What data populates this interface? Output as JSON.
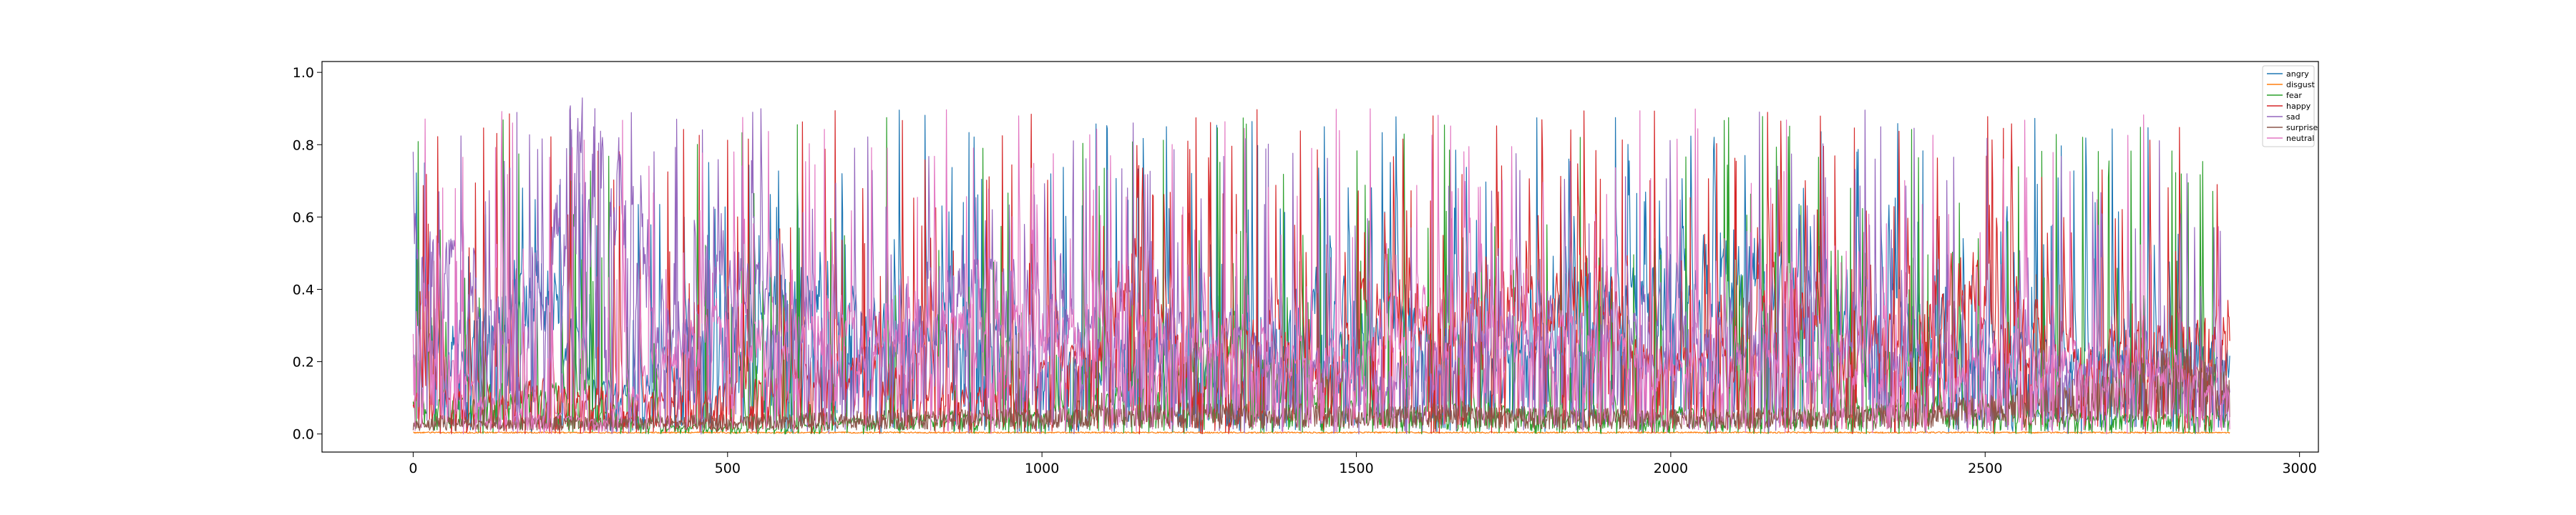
{
  "chart_data": {
    "type": "line",
    "title": "",
    "xlabel": "",
    "ylabel": "",
    "xlim": [
      -145,
      3030
    ],
    "ylim": [
      -0.05,
      1.03
    ],
    "x_ticks": [
      0,
      500,
      1000,
      1500,
      2000,
      2500,
      3000
    ],
    "y_ticks": [
      0.0,
      0.2,
      0.4,
      0.6,
      0.8,
      1.0
    ],
    "x_tick_labels": [
      "0",
      "500",
      "1000",
      "1500",
      "2000",
      "2500",
      "3000"
    ],
    "y_tick_labels": [
      "0.0",
      "0.2",
      "0.4",
      "0.6",
      "0.8",
      "1.0"
    ],
    "n_points": 2890,
    "grid": false,
    "legend_position": "top-right",
    "series": [
      {
        "name": "angry",
        "color": "#1f77b4",
        "profile": [
          [
            0,
            0.2
          ],
          [
            100,
            0.3
          ],
          [
            200,
            0.45
          ],
          [
            280,
            0.15
          ],
          [
            350,
            0.1
          ],
          [
            420,
            0.2
          ],
          [
            520,
            0.3
          ],
          [
            620,
            0.4
          ],
          [
            700,
            0.3
          ],
          [
            760,
            0.25
          ],
          [
            900,
            0.3
          ],
          [
            1000,
            0.2
          ],
          [
            1100,
            0.2
          ],
          [
            1200,
            0.25
          ],
          [
            1300,
            0.1
          ],
          [
            1420,
            0.35
          ],
          [
            1500,
            0.38
          ],
          [
            1600,
            0.3
          ],
          [
            1700,
            0.2
          ],
          [
            1800,
            0.3
          ],
          [
            1900,
            0.35
          ],
          [
            2000,
            0.4
          ],
          [
            2100,
            0.45
          ],
          [
            2200,
            0.4
          ],
          [
            2300,
            0.35
          ],
          [
            2400,
            0.3
          ],
          [
            2500,
            0.25
          ],
          [
            2600,
            0.2
          ],
          [
            2700,
            0.2
          ],
          [
            2800,
            0.25
          ],
          [
            2890,
            0.2
          ]
        ]
      },
      {
        "name": "disgust",
        "color": "#ff7f0e",
        "profile": [
          [
            0,
            0.003
          ],
          [
            2890,
            0.003
          ]
        ]
      },
      {
        "name": "fear",
        "color": "#2ca02c",
        "profile": [
          [
            0,
            0.08
          ],
          [
            200,
            0.12
          ],
          [
            400,
            0.02
          ],
          [
            600,
            0.02
          ],
          [
            800,
            0.05
          ],
          [
            1000,
            0.05
          ],
          [
            1200,
            0.15
          ],
          [
            1300,
            0.25
          ],
          [
            1400,
            0.1
          ],
          [
            1600,
            0.06
          ],
          [
            1800,
            0.06
          ],
          [
            2000,
            0.06
          ],
          [
            2200,
            0.05
          ],
          [
            2400,
            0.08
          ],
          [
            2600,
            0.05
          ],
          [
            2890,
            0.05
          ]
        ]
      },
      {
        "name": "happy",
        "color": "#d62728",
        "profile": [
          [
            0,
            0.1
          ],
          [
            200,
            0.12
          ],
          [
            400,
            0.1
          ],
          [
            600,
            0.15
          ],
          [
            700,
            0.2
          ],
          [
            900,
            0.1
          ],
          [
            1100,
            0.25
          ],
          [
            1160,
            0.6
          ],
          [
            1200,
            0.3
          ],
          [
            1300,
            0.1
          ],
          [
            1350,
            0.3
          ],
          [
            1450,
            0.15
          ],
          [
            1550,
            0.4
          ],
          [
            1650,
            0.25
          ],
          [
            1700,
            0.45
          ],
          [
            1800,
            0.3
          ],
          [
            1880,
            0.45
          ],
          [
            1950,
            0.2
          ],
          [
            2100,
            0.2
          ],
          [
            2170,
            0.45
          ],
          [
            2250,
            0.2
          ],
          [
            2350,
            0.3
          ],
          [
            2450,
            0.4
          ],
          [
            2550,
            0.35
          ],
          [
            2650,
            0.2
          ],
          [
            2750,
            0.25
          ],
          [
            2890,
            0.3
          ]
        ]
      },
      {
        "name": "sad",
        "color": "#9467bd",
        "profile": [
          [
            0,
            0.5
          ],
          [
            100,
            0.35
          ],
          [
            200,
            0.3
          ],
          [
            250,
            0.7
          ],
          [
            330,
            0.6
          ],
          [
            400,
            0.3
          ],
          [
            500,
            0.45
          ],
          [
            560,
            0.4
          ],
          [
            620,
            0.3
          ],
          [
            700,
            0.2
          ],
          [
            800,
            0.35
          ],
          [
            900,
            0.4
          ],
          [
            1000,
            0.35
          ],
          [
            1100,
            0.35
          ],
          [
            1200,
            0.3
          ],
          [
            1300,
            0.25
          ],
          [
            1400,
            0.2
          ],
          [
            1500,
            0.15
          ],
          [
            1600,
            0.2
          ],
          [
            1700,
            0.25
          ],
          [
            1800,
            0.3
          ],
          [
            1900,
            0.3
          ],
          [
            2000,
            0.3
          ],
          [
            2100,
            0.25
          ],
          [
            2200,
            0.25
          ],
          [
            2300,
            0.25
          ],
          [
            2400,
            0.2
          ],
          [
            2500,
            0.2
          ],
          [
            2600,
            0.2
          ],
          [
            2700,
            0.2
          ],
          [
            2890,
            0.15
          ]
        ]
      },
      {
        "name": "surprise",
        "color": "#8c564b",
        "profile": [
          [
            0,
            0.03
          ],
          [
            400,
            0.03
          ],
          [
            800,
            0.04
          ],
          [
            1200,
            0.05
          ],
          [
            1600,
            0.05
          ],
          [
            2000,
            0.04
          ],
          [
            2400,
            0.05
          ],
          [
            2700,
            0.1
          ],
          [
            2800,
            0.15
          ],
          [
            2890,
            0.1
          ]
        ]
      },
      {
        "name": "neutral",
        "color": "#e377c2",
        "profile": [
          [
            0,
            0.35
          ],
          [
            100,
            0.1
          ],
          [
            200,
            0.05
          ],
          [
            300,
            0.03
          ],
          [
            400,
            0.2
          ],
          [
            500,
            0.3
          ],
          [
            600,
            0.25
          ],
          [
            700,
            0.3
          ],
          [
            800,
            0.3
          ],
          [
            900,
            0.3
          ],
          [
            1000,
            0.3
          ],
          [
            1100,
            0.25
          ],
          [
            1200,
            0.25
          ],
          [
            1300,
            0.3
          ],
          [
            1400,
            0.2
          ],
          [
            1500,
            0.2
          ],
          [
            1600,
            0.3
          ],
          [
            1700,
            0.3
          ],
          [
            1800,
            0.25
          ],
          [
            1900,
            0.25
          ],
          [
            2000,
            0.15
          ],
          [
            2100,
            0.2
          ],
          [
            2200,
            0.2
          ],
          [
            2300,
            0.15
          ],
          [
            2400,
            0.15
          ],
          [
            2500,
            0.2
          ],
          [
            2600,
            0.2
          ],
          [
            2700,
            0.2
          ],
          [
            2890,
            0.15
          ]
        ]
      }
    ]
  }
}
